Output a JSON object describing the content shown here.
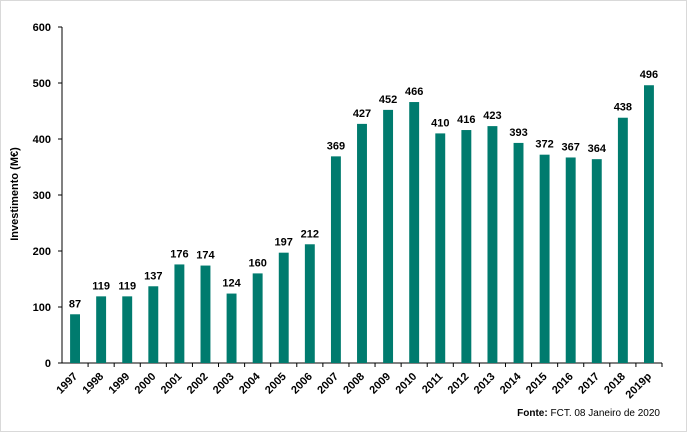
{
  "chart_data": {
    "type": "bar",
    "ylabel": "Investimento (M€)",
    "xlabel": "",
    "ylim": [
      0,
      600
    ],
    "yticks": [
      0,
      100,
      200,
      300,
      400,
      500,
      600
    ],
    "grid": false,
    "bar_color": "#007b6e",
    "categories": [
      "1997",
      "1998",
      "1999",
      "2000",
      "2001",
      "2002",
      "2003",
      "2004",
      "2005",
      "2006",
      "2007",
      "2008",
      "2009",
      "2010",
      "2011",
      "2012",
      "2013",
      "2014",
      "2015",
      "2016",
      "2017",
      "2018",
      "2019p"
    ],
    "values": [
      87,
      119,
      119,
      137,
      176,
      174,
      124,
      160,
      197,
      212,
      369,
      427,
      452,
      466,
      410,
      416,
      423,
      393,
      372,
      367,
      364,
      438,
      496
    ],
    "source": {
      "label": "Fonte:",
      "text": "FCT. 08 Janeiro de 2020"
    }
  }
}
